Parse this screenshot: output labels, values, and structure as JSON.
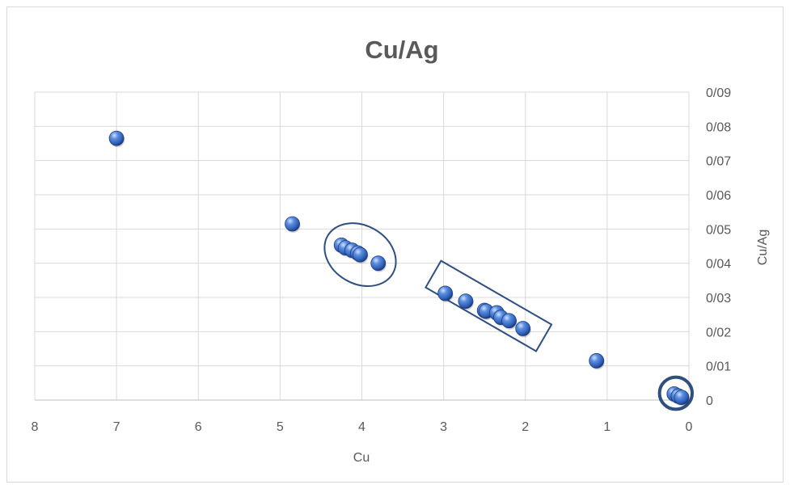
{
  "chart_data": {
    "type": "scatter",
    "title": "Cu/Ag",
    "xlabel": "Cu",
    "ylabel": "Cu/Ag",
    "x_reversed": true,
    "y_axis_position": "right",
    "xlim": [
      0,
      8
    ],
    "ylim": [
      0,
      0.09
    ],
    "grid": true,
    "x_ticks": [
      8,
      7,
      6,
      5,
      4,
      3,
      2,
      1,
      0
    ],
    "x_tick_labels": [
      "8",
      "7",
      "6",
      "5",
      "4",
      "3",
      "2",
      "1",
      "0"
    ],
    "y_ticks": [
      0,
      0.01,
      0.02,
      0.03,
      0.04,
      0.05,
      0.06,
      0.07,
      0.08,
      0.09
    ],
    "y_tick_labels": [
      "0",
      "0/01",
      "0/02",
      "0/03",
      "0/04",
      "0/05",
      "0/06",
      "0/07",
      "0/08",
      "0/09"
    ],
    "marker_color": "#4472c4",
    "annotation_color": "#2f4f7f",
    "series": [
      {
        "points": [
          {
            "x": 7.0,
            "y": 0.0765
          },
          {
            "x": 4.85,
            "y": 0.0515
          },
          {
            "x": 4.25,
            "y": 0.0453
          },
          {
            "x": 4.2,
            "y": 0.0445
          },
          {
            "x": 4.12,
            "y": 0.0438
          },
          {
            "x": 4.05,
            "y": 0.043
          },
          {
            "x": 4.02,
            "y": 0.0425
          },
          {
            "x": 3.8,
            "y": 0.04
          },
          {
            "x": 2.98,
            "y": 0.0312
          },
          {
            "x": 2.73,
            "y": 0.0289
          },
          {
            "x": 2.5,
            "y": 0.0262
          },
          {
            "x": 2.48,
            "y": 0.026
          },
          {
            "x": 2.35,
            "y": 0.0255
          },
          {
            "x": 2.3,
            "y": 0.0242
          },
          {
            "x": 2.2,
            "y": 0.0232
          },
          {
            "x": 2.03,
            "y": 0.0209
          },
          {
            "x": 1.13,
            "y": 0.0115
          },
          {
            "x": 0.18,
            "y": 0.0018
          },
          {
            "x": 0.13,
            "y": 0.0012
          },
          {
            "x": 0.09,
            "y": 0.0008
          }
        ]
      }
    ],
    "annotations": [
      {
        "shape": "ellipse",
        "x_center": 4.02,
        "y_center": 0.0425,
        "x_radius": 0.46,
        "y_radius": 0.0085,
        "rotation_deg": 30
      },
      {
        "shape": "rectangle",
        "x_center": 2.45,
        "y_center": 0.0275,
        "x_halfwidth": 0.78,
        "y_halfheight": 0.0045,
        "rotation_deg": 30
      },
      {
        "shape": "ellipse",
        "x_center": 0.16,
        "y_center": 0.002,
        "x_radius": 0.2,
        "y_radius": 0.0047,
        "rotation_deg": 0
      }
    ]
  }
}
